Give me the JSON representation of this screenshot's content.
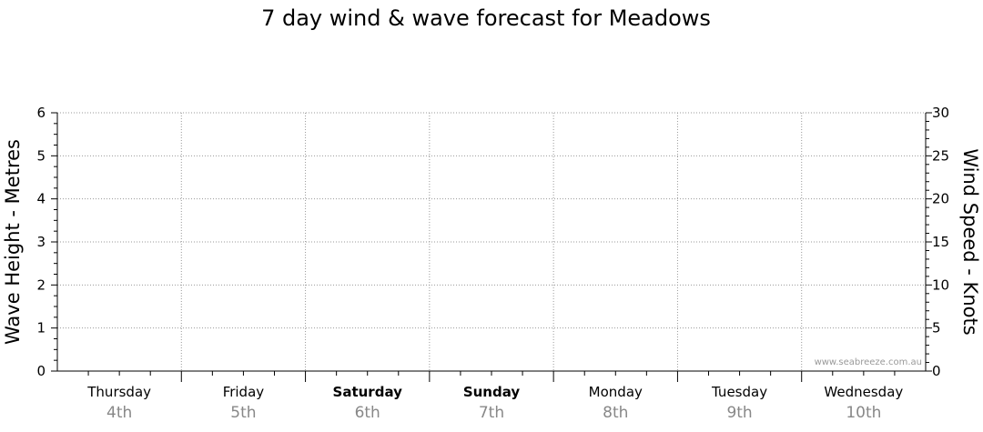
{
  "chart_data": {
    "type": "line",
    "title": "7 day wind & wave forecast for Meadows",
    "y_left": {
      "label": "Wave Height - Metres",
      "range": [
        0,
        6
      ],
      "ticks": [
        "0",
        "1",
        "2",
        "3",
        "4",
        "5",
        "6"
      ]
    },
    "y_right": {
      "label": "Wind Speed - Knots",
      "range": [
        0,
        30
      ],
      "ticks": [
        "0",
        "5",
        "10",
        "15",
        "20",
        "25",
        "30"
      ]
    },
    "days": [
      {
        "name": "Thursday",
        "date": "4th",
        "weekend": false
      },
      {
        "name": "Friday",
        "date": "5th",
        "weekend": false
      },
      {
        "name": "Saturday",
        "date": "6th",
        "weekend": true
      },
      {
        "name": "Sunday",
        "date": "7th",
        "weekend": true
      },
      {
        "name": "Monday",
        "date": "8th",
        "weekend": false
      },
      {
        "name": "Tuesday",
        "date": "9th",
        "weekend": false
      },
      {
        "name": "Wednesday",
        "date": "10th",
        "weekend": false
      }
    ],
    "grid": true,
    "series": [],
    "watermark": "www.seabreeze.com.au"
  }
}
